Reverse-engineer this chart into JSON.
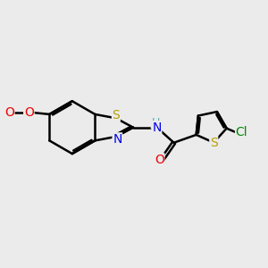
{
  "bg_color": "#ebebeb",
  "bond_color": "#000000",
  "bond_width": 1.8,
  "atom_colors": {
    "S": "#b8a000",
    "N": "#0000ee",
    "O": "#ee0000",
    "Cl": "#008800",
    "NH": "#5fa8a8",
    "C": "#000000"
  },
  "font_size": 10,
  "bl": 1.0
}
